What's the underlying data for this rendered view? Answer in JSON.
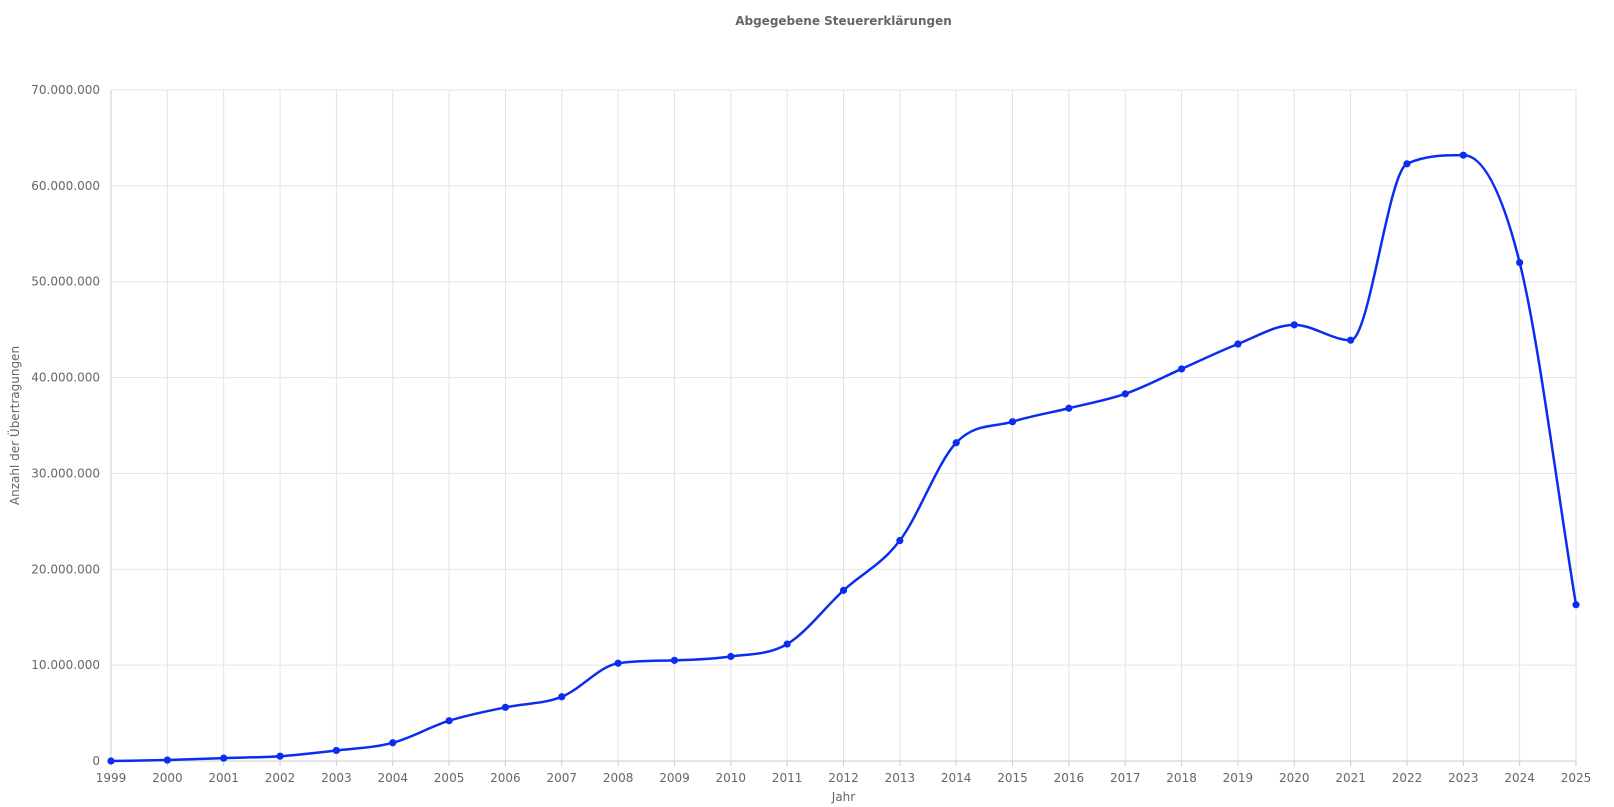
{
  "chart_data": {
    "type": "line",
    "title": "Abgegebene Steuererklärungen",
    "xlabel": "Jahr",
    "ylabel": "Anzahl der Übertragungen",
    "x": [
      "1999",
      "2000",
      "2001",
      "2002",
      "2003",
      "2004",
      "2005",
      "2006",
      "2007",
      "2008",
      "2009",
      "2010",
      "2011",
      "2012",
      "2013",
      "2014",
      "2015",
      "2016",
      "2017",
      "2018",
      "2019",
      "2020",
      "2021",
      "2022",
      "2023",
      "2024",
      "2025"
    ],
    "series": [
      {
        "values": [
          0,
          100000,
          300000,
          500000,
          1100000,
          1900000,
          4200000,
          5600000,
          6700000,
          10200000,
          10500000,
          10900000,
          12200000,
          17800000,
          23000000,
          33200000,
          35400000,
          36800000,
          38300000,
          40900000,
          43500000,
          45500000,
          43900000,
          62300000,
          63200000,
          52000000,
          16300000
        ]
      }
    ],
    "ylim": [
      0,
      70000000
    ],
    "yticks": [
      0,
      10000000,
      20000000,
      30000000,
      40000000,
      50000000,
      60000000,
      70000000
    ],
    "ytick_labels": [
      "0",
      "10.000.000",
      "20.000.000",
      "30.000.000",
      "40.000.000",
      "50.000.000",
      "60.000.000",
      "70.000.000"
    ],
    "grid": true,
    "line_color": "#0a2ef0",
    "curve": "smooth"
  }
}
